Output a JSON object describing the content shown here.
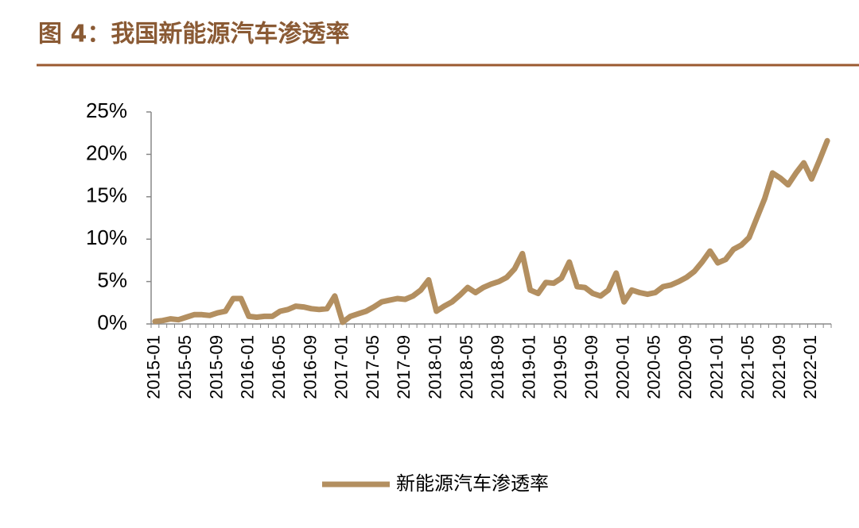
{
  "chart_data": {
    "type": "line",
    "title": "图 4：我国新能源汽车渗透率",
    "categories": [
      "2015-01",
      null,
      null,
      null,
      "2015-05",
      null,
      null,
      null,
      "2015-09",
      null,
      null,
      null,
      "2016-01",
      null,
      null,
      null,
      "2016-05",
      null,
      null,
      null,
      "2016-09",
      null,
      null,
      null,
      "2017-01",
      null,
      null,
      null,
      "2017-05",
      null,
      null,
      null,
      "2017-09",
      null,
      null,
      null,
      "2018-01",
      null,
      null,
      null,
      "2018-05",
      null,
      null,
      null,
      "2018-09",
      null,
      null,
      null,
      "2019-01",
      null,
      null,
      null,
      "2019-05",
      null,
      null,
      null,
      "2019-09",
      null,
      null,
      null,
      "2020-01",
      null,
      null,
      null,
      "2020-05",
      null,
      null,
      null,
      "2020-09",
      null,
      null,
      null,
      "2021-01",
      null,
      null,
      null,
      "2021-05",
      null,
      null,
      null,
      "2021-09",
      null,
      null,
      null,
      "2022-01",
      null,
      null
    ],
    "series": [
      {
        "name": "新能源汽车渗透率",
        "color": "#b38f60",
        "values": [
          0.3,
          0.4,
          0.6,
          0.5,
          0.8,
          1.1,
          1.1,
          1.0,
          1.3,
          1.5,
          3.0,
          3.0,
          0.9,
          0.8,
          0.9,
          0.9,
          1.5,
          1.7,
          2.1,
          2.0,
          1.8,
          1.7,
          1.8,
          3.3,
          0.2,
          0.9,
          1.2,
          1.5,
          2.0,
          2.6,
          2.8,
          3.0,
          2.9,
          3.3,
          4.0,
          5.2,
          1.5,
          2.1,
          2.6,
          3.4,
          4.3,
          3.7,
          4.3,
          4.7,
          5.0,
          5.5,
          6.5,
          8.3,
          4.0,
          3.6,
          4.9,
          4.8,
          5.4,
          7.3,
          4.4,
          4.3,
          3.6,
          3.3,
          4.0,
          6.0,
          2.6,
          4.0,
          3.7,
          3.5,
          3.7,
          4.4,
          4.6,
          5.0,
          5.5,
          6.2,
          7.3,
          8.6,
          7.2,
          7.6,
          8.8,
          9.3,
          10.2,
          12.5,
          14.8,
          17.8,
          17.2,
          16.4,
          17.8,
          19.0,
          17.1,
          19.3,
          21.6
        ]
      }
    ],
    "ylim": [
      0,
      25
    ],
    "yticks": [
      {
        "value": 0,
        "label": "0%"
      },
      {
        "value": 5,
        "label": "5%"
      },
      {
        "value": 10,
        "label": "10%"
      },
      {
        "value": 15,
        "label": "15%"
      },
      {
        "value": 20,
        "label": "20%"
      },
      {
        "value": 25,
        "label": "25%"
      }
    ],
    "grid": false,
    "legend": "bottom"
  }
}
